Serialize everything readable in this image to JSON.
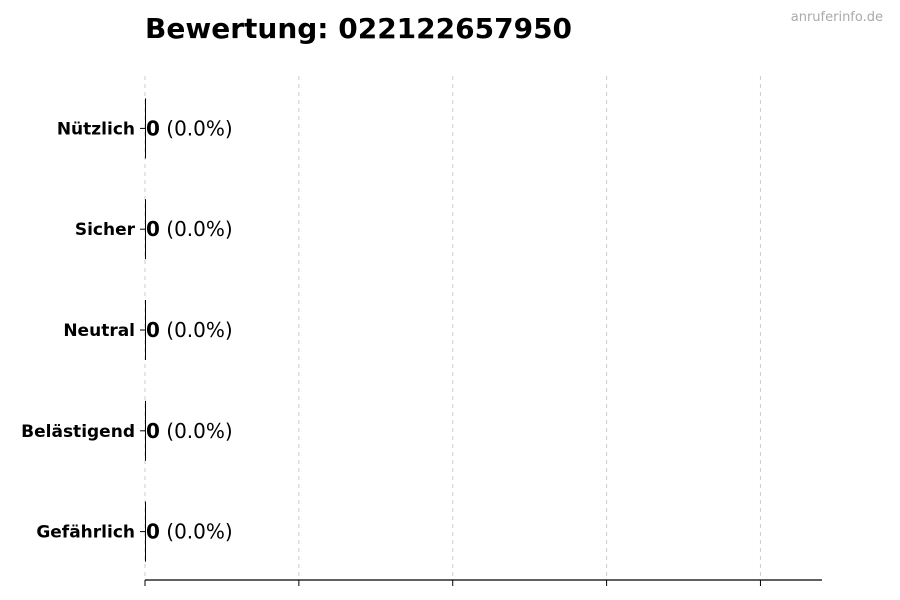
{
  "chart_data": {
    "type": "bar",
    "orientation": "horizontal",
    "title": "Bewertung: 022122657950",
    "categories": [
      "Nützlich",
      "Sicher",
      "Neutral",
      "Belästigend",
      "Gefährlich"
    ],
    "values": [
      0,
      0,
      0,
      0,
      0
    ],
    "labels": [
      {
        "count": "0",
        "percent": "(0.0%)"
      },
      {
        "count": "0",
        "percent": "(0.0%)"
      },
      {
        "count": "0",
        "percent": "(0.0%)"
      },
      {
        "count": "0",
        "percent": "(0.0%)"
      },
      {
        "count": "0",
        "percent": "(0.0%)"
      }
    ],
    "xlim": [
      0,
      4.4
    ],
    "x_ticks": [
      0,
      1,
      2,
      3,
      4
    ],
    "x_tick_labels_shown": false,
    "grid": "vertical dashed",
    "bar_color": "#000000"
  },
  "watermark": "anruferinfo.de"
}
